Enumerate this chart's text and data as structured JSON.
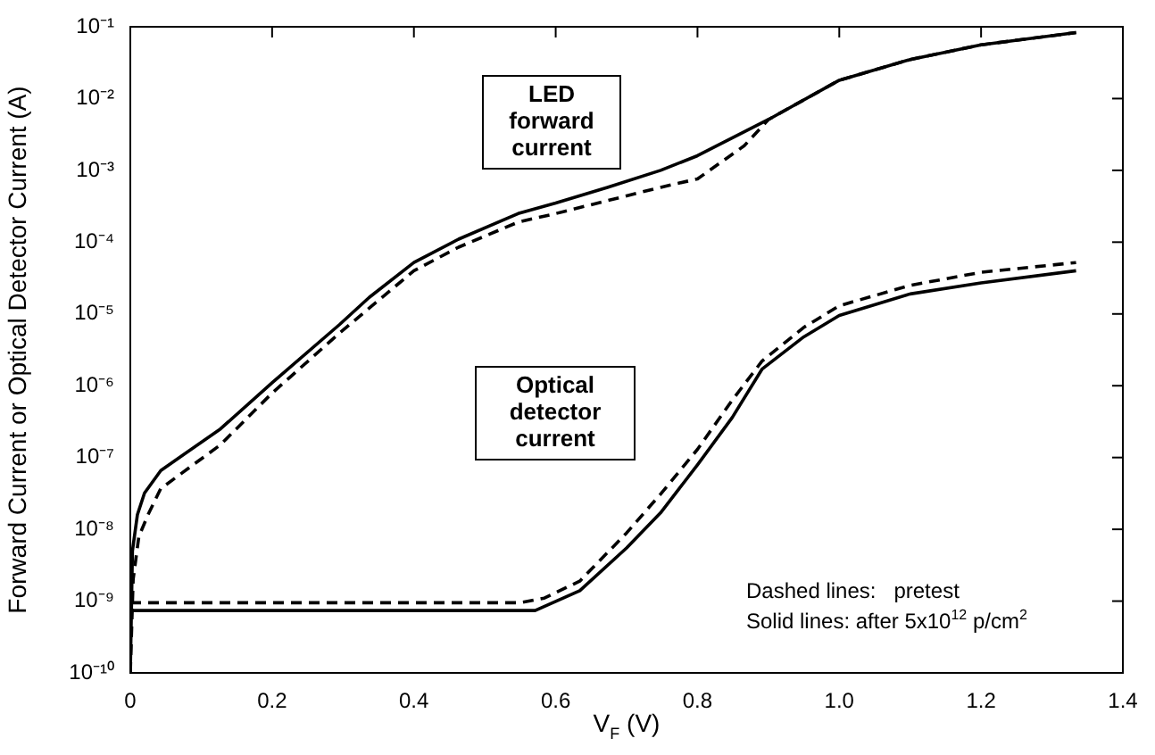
{
  "chart_data": {
    "type": "line",
    "xlabel": "V$_{F}$ (V)",
    "ylabel": "Forward Current or Optical Detector Current (A)",
    "annotations": [
      "LED forward current",
      "Optical detector current",
      "Dashed lines:   pretest",
      "Solid lines: after 5x10$^{12}$ p/cm$^{2}$"
    ],
    "log": "y",
    "marker": "none",
    "xlim": [
      0,
      1.4
    ],
    "xticks": [
      0,
      0.2,
      0.4,
      0.6,
      0.8,
      {
        "value": 1,
        "label": "1.0"
      },
      1.2,
      1.4
    ],
    "ylim": [
      1e-10,
      0.1
    ],
    "yticks": [
      {
        "value": 1e-10,
        "label": "10⁻¹⁰"
      },
      {
        "value": 1e-09,
        "label": "10⁻⁹"
      },
      {
        "value": 1e-08,
        "label": "10⁻⁸"
      },
      {
        "value": 1e-07,
        "label": "10⁻⁷"
      },
      {
        "value": 1e-06,
        "label": "10⁻⁶"
      },
      {
        "value": 1e-05,
        "label": "10⁻⁵"
      },
      {
        "value": 0.0001,
        "label": "10⁻⁴"
      },
      {
        "value": 0.001,
        "label": "10⁻³"
      },
      {
        "value": 0.01,
        "label": "10⁻²"
      },
      {
        "value": 0.1,
        "label": "10⁻¹"
      }
    ],
    "series": [
      {
        "color": "#000000",
        "line_style": "solid",
        "x": [
          0,
          0.003,
          0.01,
          0.02,
          0.043,
          0.127,
          0.2,
          0.295,
          0.337,
          0.4,
          0.463,
          0.547,
          0.6,
          0.673,
          0.748,
          0.8,
          0.9,
          1.0,
          1.1,
          1.2,
          1.334
        ],
        "values": [
          1e-10,
          5e-09,
          1.6e-08,
          3.2e-08,
          6.6e-08,
          2.5e-07,
          1.1e-06,
          7.1e-06,
          1.7e-05,
          5.2e-05,
          0.00011,
          0.00025,
          0.00035,
          0.00058,
          0.001,
          0.0016,
          0.0051,
          0.018,
          0.035,
          0.056,
          0.083
        ]
      },
      {
        "color": "#000000",
        "line_style": "dashed",
        "x": [
          0,
          0.004,
          0.012,
          0.025,
          0.043,
          0.127,
          0.2,
          0.295,
          0.4,
          0.463,
          0.547,
          0.6,
          0.748,
          0.8,
          0.866,
          0.9,
          1.0,
          1.1,
          1.2,
          1.334
        ],
        "values": [
          1e-10,
          2e-09,
          7.9e-09,
          1.6e-08,
          3.7e-08,
          1.5e-07,
          7.9e-07,
          5.4e-06,
          4e-05,
          8.5e-05,
          0.00019,
          0.00025,
          0.00058,
          0.00076,
          0.0022,
          0.0051,
          0.018,
          0.035,
          0.056,
          0.083
        ]
      },
      {
        "color": "#000000",
        "line_style": "solid",
        "x": [
          0,
          0.571,
          0.634,
          0.7,
          0.748,
          0.8,
          0.849,
          0.891,
          0.95,
          1.0,
          1.1,
          1.2,
          1.334
        ],
        "values": [
          7.4e-10,
          7.4e-10,
          1.4e-09,
          5.5e-09,
          1.7e-08,
          7.9e-08,
          3.6e-07,
          1.7e-06,
          4.8e-06,
          9.5e-06,
          1.9e-05,
          2.7e-05,
          4e-05
        ]
      },
      {
        "color": "#000000",
        "line_style": "dashed",
        "x": [
          0,
          0.55,
          0.584,
          0.634,
          0.7,
          0.748,
          0.8,
          0.849,
          0.891,
          0.95,
          1.0,
          1.1,
          1.2,
          1.334
        ],
        "values": [
          9.5e-10,
          9.5e-10,
          1.1e-09,
          1.9e-09,
          8.9e-09,
          3.1e-08,
          1.3e-07,
          6.3e-07,
          2.2e-06,
          6.5e-06,
          1.3e-05,
          2.5e-05,
          3.8e-05,
          5.2e-05
        ]
      }
    ]
  }
}
